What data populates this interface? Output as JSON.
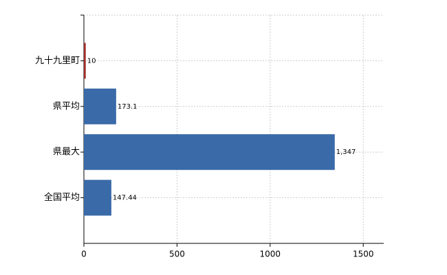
{
  "chart_data": {
    "type": "bar",
    "orientation": "horizontal",
    "categories": [
      "九十九里町",
      "県平均",
      "県最大",
      "全国平均"
    ],
    "values": [
      10,
      173.1,
      1347,
      147.44
    ],
    "value_labels": [
      "10",
      "173.1",
      "1,347",
      "147.44"
    ],
    "colors": [
      "#a0302a",
      "#3a6aa8",
      "#3a6aa8",
      "#3a6aa8"
    ],
    "xlim": [
      0,
      1610
    ],
    "xticks": [
      0,
      500,
      1000,
      1500
    ],
    "grid": true
  }
}
